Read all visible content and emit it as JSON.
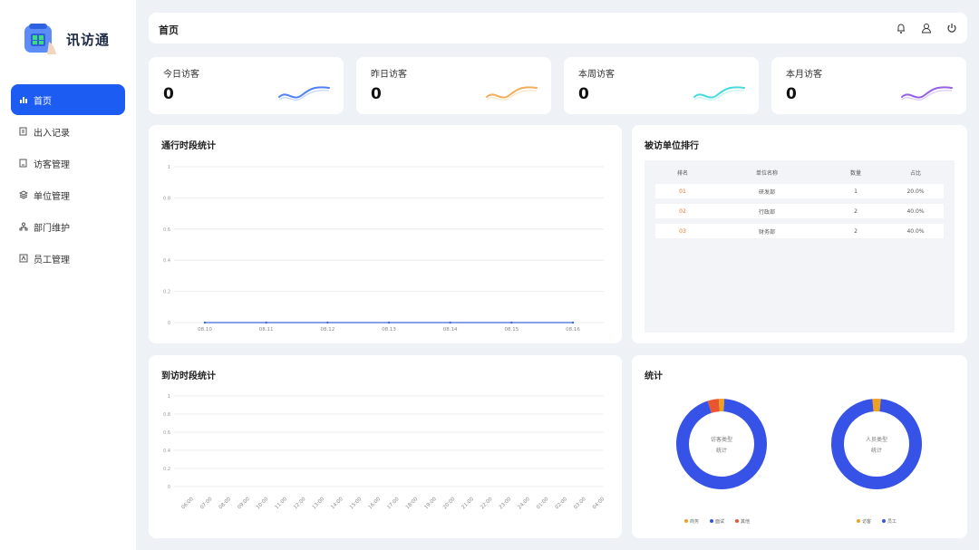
{
  "app": {
    "name": "讯访通"
  },
  "sidebar": {
    "items": [
      {
        "label": "首页",
        "icon": "bar-chart-icon",
        "active": true
      },
      {
        "label": "出入记录",
        "icon": "record-icon",
        "active": false
      },
      {
        "label": "访客管理",
        "icon": "visitor-icon",
        "active": false
      },
      {
        "label": "单位管理",
        "icon": "unit-icon",
        "active": false
      },
      {
        "label": "部门维护",
        "icon": "department-icon",
        "active": false
      },
      {
        "label": "员工管理",
        "icon": "employee-icon",
        "active": false
      }
    ]
  },
  "header": {
    "title": "首页",
    "icons": [
      "bell-icon",
      "user-icon",
      "power-icon"
    ]
  },
  "stats": [
    {
      "label": "今日访客",
      "value": "0",
      "color": "#3d73f5"
    },
    {
      "label": "昨日访客",
      "value": "0",
      "color": "#f2a54a"
    },
    {
      "label": "本周访客",
      "value": "0",
      "color": "#35d6d6"
    },
    {
      "label": "本月访客",
      "value": "0",
      "color": "#8a4fe0"
    }
  ],
  "colors": {
    "accent": "#1d5cf2",
    "line": "#3d6ad6",
    "donut_main": "#3752e6",
    "donut_orange": "#f0a020",
    "donut_red": "#e8552f"
  },
  "panels": {
    "traffic_title": "通行时段统计",
    "arrival_title": "到访时段统计",
    "rank_title": "被访单位排行",
    "stats_title": "统计"
  },
  "rank": {
    "headers": [
      "排名",
      "单位名称",
      "数量",
      "占比"
    ],
    "rows": [
      {
        "rank": "01",
        "name": "研发部",
        "count": "1",
        "ratio": "20.0%"
      },
      {
        "rank": "02",
        "name": "行政部",
        "count": "2",
        "ratio": "40.0%"
      },
      {
        "rank": "03",
        "name": "财务部",
        "count": "2",
        "ratio": "40.0%"
      }
    ]
  },
  "chart_data": [
    {
      "type": "line",
      "name_ref": "通行时段统计",
      "x": [
        "08.10",
        "08.11",
        "08.12",
        "08.13",
        "08.14",
        "08.15",
        "08.16"
      ],
      "series": [
        {
          "values": [
            0,
            0,
            0,
            0,
            0,
            0,
            0
          ]
        }
      ],
      "yticks": [
        "0",
        "0.2",
        "0.4",
        "0.6",
        "0.8",
        "1"
      ],
      "ylim": [
        0,
        1
      ],
      "grid": true
    },
    {
      "type": "bar",
      "name_ref": "到访时段统计",
      "categories": [
        "06:00",
        "07:00",
        "08:00",
        "09:00",
        "10:00",
        "11:00",
        "12:00",
        "13:00",
        "14:00",
        "15:00",
        "16:00",
        "17:00",
        "18:00",
        "19:00",
        "20:00",
        "21:00",
        "22:00",
        "23:00",
        "24:00",
        "01:00",
        "02:00",
        "03:00",
        "04:00"
      ],
      "values": [
        0,
        0,
        0,
        0,
        0,
        0,
        0,
        0,
        0,
        0,
        0,
        0,
        0,
        0,
        0,
        0,
        0,
        0,
        0,
        0,
        0,
        0,
        0
      ],
      "yticks": [
        "0",
        "0.2",
        "0.4",
        "0.6",
        "0.8",
        "1"
      ],
      "ylim": [
        0,
        1
      ],
      "grid": true
    },
    {
      "type": "pie",
      "center_lines": [
        "访客类型",
        "统计"
      ],
      "labels": [
        "商务",
        "面试",
        "其他"
      ],
      "values": [
        2,
        94,
        4
      ],
      "colors": [
        "#f0a020",
        "#3752e6",
        "#e8552f"
      ]
    },
    {
      "type": "pie",
      "center_lines": [
        "人员类型",
        "统计"
      ],
      "labels": [
        "访客",
        "员工"
      ],
      "values": [
        3,
        97
      ],
      "colors": [
        "#f0a020",
        "#3752e6"
      ]
    }
  ]
}
